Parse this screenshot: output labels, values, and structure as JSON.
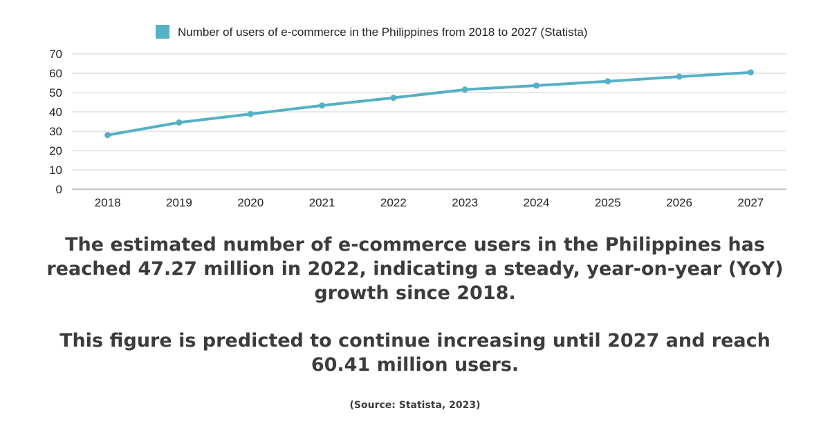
{
  "chart_data": {
    "type": "line",
    "categories": [
      "2018",
      "2019",
      "2020",
      "2021",
      "2022",
      "2023",
      "2024",
      "2025",
      "2026",
      "2027"
    ],
    "series": [
      {
        "name": "Number of users of e-commerce in the Philippines from 2018 to 2027 (Statista)",
        "values": [
          28.0,
          34.5,
          38.9,
          43.3,
          47.27,
          51.5,
          53.6,
          55.8,
          58.2,
          60.41
        ],
        "color": "#55b1c5"
      }
    ],
    "yticks": [
      "0",
      "10",
      "20",
      "30",
      "40",
      "50",
      "60",
      "70"
    ],
    "ylim": [
      0,
      70
    ],
    "grid": true,
    "legend_position": "top-center",
    "gridline_color": "#d0d0d0",
    "axis_color": "#888888"
  },
  "text": {
    "caption_1": "The estimated number of e-commerce users in the Philippines has reached 47.27 million in 2022, indicating a steady, year-on-year (YoY) growth since 2018.",
    "caption_2": "This figure is predicted to continue increasing until 2027 and reach 60.41 million users.",
    "source": "(Source: Statista, 2023)"
  }
}
